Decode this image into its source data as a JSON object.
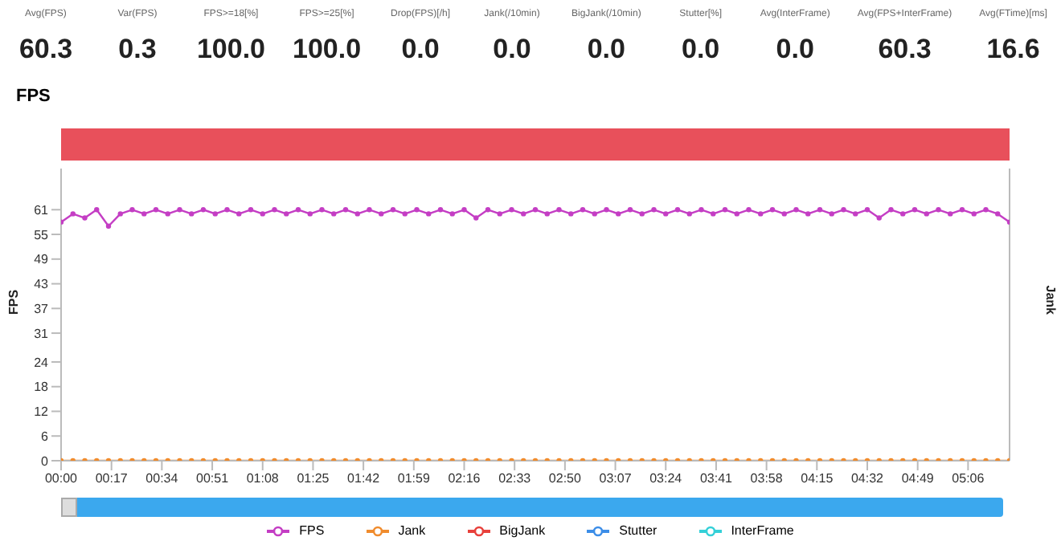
{
  "chart_data": [
    {
      "type": "other",
      "categories": [
        "Avg(FPS)",
        "Var(FPS)",
        "FPS>=18[%]",
        "FPS>=25[%]",
        "Drop(FPS)[/h]",
        "Jank(/10min)",
        "BigJank(/10min)",
        "Stutter[%]",
        "Avg(InterFrame)",
        "Avg(FPS+InterFrame)",
        "Avg(FTime)[ms]"
      ],
      "value_labels": [
        "60.3",
        "0.3",
        "100.0",
        "100.0",
        "0.0",
        "0.0",
        "0.0",
        "0.0",
        "0.0",
        "60.3",
        "16.6"
      ]
    },
    {
      "type": "line",
      "title": "FPS",
      "ylabel": "FPS",
      "y2label": "Jank",
      "legend": "bottom",
      "marker": "circle",
      "line_style": "solid",
      "x": [
        0,
        4,
        8,
        12,
        16,
        20,
        24,
        28,
        32,
        36,
        40,
        44,
        48,
        52,
        56,
        60,
        64,
        68,
        72,
        76,
        80,
        84,
        88,
        92,
        96,
        100,
        104,
        108,
        112,
        116,
        120,
        124,
        128,
        132,
        136,
        140,
        144,
        148,
        152,
        156,
        160,
        164,
        168,
        172,
        176,
        180,
        184,
        188,
        192,
        196,
        200,
        204,
        208,
        212,
        216,
        220,
        224,
        228,
        232,
        236,
        240,
        244,
        248,
        252,
        256,
        260,
        264,
        268,
        272,
        276,
        280,
        284,
        288,
        292,
        296,
        300,
        304,
        308,
        312,
        316,
        320
      ],
      "xlim": [
        0,
        320
      ],
      "xticks": [
        {
          "value": 0,
          "label": "00:00"
        },
        {
          "value": 17,
          "label": "00:17"
        },
        {
          "value": 34,
          "label": "00:34"
        },
        {
          "value": 51,
          "label": "00:51"
        },
        {
          "value": 68,
          "label": "01:08"
        },
        {
          "value": 85,
          "label": "01:25"
        },
        {
          "value": 102,
          "label": "01:42"
        },
        {
          "value": 119,
          "label": "01:59"
        },
        {
          "value": 136,
          "label": "02:16"
        },
        {
          "value": 153,
          "label": "02:33"
        },
        {
          "value": 170,
          "label": "02:50"
        },
        {
          "value": 187,
          "label": "03:07"
        },
        {
          "value": 204,
          "label": "03:24"
        },
        {
          "value": 221,
          "label": "03:41"
        },
        {
          "value": 238,
          "label": "03:58"
        },
        {
          "value": 255,
          "label": "04:15"
        },
        {
          "value": 272,
          "label": "04:32"
        },
        {
          "value": 289,
          "label": "04:49"
        },
        {
          "value": 306,
          "label": "05:06"
        }
      ],
      "ylim": [
        0,
        71
      ],
      "yticks": [
        0,
        6,
        12,
        18,
        24,
        31,
        37,
        43,
        49,
        55,
        61
      ],
      "series": [
        {
          "name": "FPS",
          "color": "#c43ec4",
          "values": [
            58,
            60,
            59,
            61,
            57,
            60,
            61,
            60,
            61,
            60,
            61,
            60,
            61,
            60,
            61,
            60,
            61,
            60,
            61,
            60,
            61,
            60,
            61,
            60,
            61,
            60,
            61,
            60,
            61,
            60,
            61,
            60,
            61,
            60,
            61,
            59,
            61,
            60,
            61,
            60,
            61,
            60,
            61,
            60,
            61,
            60,
            61,
            60,
            61,
            60,
            61,
            60,
            61,
            60,
            61,
            60,
            61,
            60,
            61,
            60,
            61,
            60,
            61,
            60,
            61,
            60,
            61,
            60,
            61,
            59,
            61,
            60,
            61,
            60,
            61,
            60,
            61,
            60,
            61,
            60,
            58
          ]
        },
        {
          "name": "Jank",
          "color": "#f08c2e",
          "values": [
            0,
            0,
            0,
            0,
            0,
            0,
            0,
            0,
            0,
            0,
            0,
            0,
            0,
            0,
            0,
            0,
            0,
            0,
            0,
            0,
            0,
            0,
            0,
            0,
            0,
            0,
            0,
            0,
            0,
            0,
            0,
            0,
            0,
            0,
            0,
            0,
            0,
            0,
            0,
            0,
            0,
            0,
            0,
            0,
            0,
            0,
            0,
            0,
            0,
            0,
            0,
            0,
            0,
            0,
            0,
            0,
            0,
            0,
            0,
            0,
            0,
            0,
            0,
            0,
            0,
            0,
            0,
            0,
            0,
            0,
            0,
            0,
            0,
            0,
            0,
            0,
            0,
            0,
            0,
            0,
            0
          ]
        },
        {
          "name": "BigJank",
          "color": "#e8413c",
          "values": [
            null,
            null,
            null,
            null,
            null,
            null,
            null,
            null,
            null,
            null,
            null,
            null,
            null,
            null,
            null,
            null,
            null,
            null,
            null,
            null,
            null,
            null,
            null,
            null,
            null,
            null,
            null,
            null,
            null,
            null,
            null,
            null,
            null,
            null,
            null,
            null,
            null,
            null,
            null,
            null,
            null,
            null,
            null,
            null,
            null,
            null,
            null,
            null,
            null,
            null,
            null,
            null,
            null,
            null,
            null,
            null,
            null,
            null,
            null,
            null,
            null,
            null,
            null,
            null,
            null,
            null,
            null,
            null,
            null,
            null,
            null,
            null,
            null,
            null,
            null,
            null,
            null,
            null,
            null,
            null,
            null
          ]
        },
        {
          "name": "Stutter",
          "color": "#3d8ee8",
          "values": [
            null,
            null,
            null,
            null,
            null,
            null,
            null,
            null,
            null,
            null,
            null,
            null,
            null,
            null,
            null,
            null,
            null,
            null,
            null,
            null,
            null,
            null,
            null,
            null,
            null,
            null,
            null,
            null,
            null,
            null,
            null,
            null,
            null,
            null,
            null,
            null,
            null,
            null,
            null,
            null,
            null,
            null,
            null,
            null,
            null,
            null,
            null,
            null,
            null,
            null,
            null,
            null,
            null,
            null,
            null,
            null,
            null,
            null,
            null,
            null,
            null,
            null,
            null,
            null,
            null,
            null,
            null,
            null,
            null,
            null,
            null,
            null,
            null,
            null,
            null,
            null,
            null,
            null,
            null,
            null,
            null
          ]
        },
        {
          "name": "InterFrame",
          "color": "#35d0d8",
          "values": [
            null,
            null,
            null,
            null,
            null,
            null,
            null,
            null,
            null,
            null,
            null,
            null,
            null,
            null,
            null,
            null,
            null,
            null,
            null,
            null,
            null,
            null,
            null,
            null,
            null,
            null,
            null,
            null,
            null,
            null,
            null,
            null,
            null,
            null,
            null,
            null,
            null,
            null,
            null,
            null,
            null,
            null,
            null,
            null,
            null,
            null,
            null,
            null,
            null,
            null,
            null,
            null,
            null,
            null,
            null,
            null,
            null,
            null,
            null,
            null,
            null,
            null,
            null,
            null,
            null,
            null,
            null,
            null,
            null,
            null,
            null,
            null,
            null,
            null,
            null,
            null,
            null,
            null,
            null,
            null,
            null
          ]
        }
      ]
    }
  ]
}
